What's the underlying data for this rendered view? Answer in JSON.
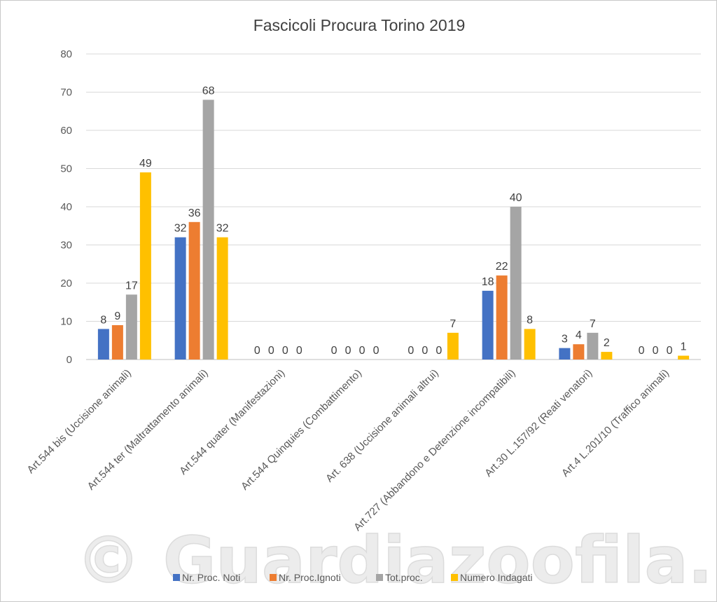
{
  "chart_data": {
    "type": "bar",
    "title": "Fascicoli Procura Torino 2019",
    "categories": [
      "Art.544 bis (Uccisione animali)",
      "Art.544 ter (Maltrattamento animali)",
      "Art.544 quater (Manifestazioni)",
      "Art.544 Quinquies (Combattimento)",
      "Art. 638 (Uccisione animali altrui)",
      "Art.727 (Abbandono e Detenzione incompatibili)",
      "Art.30 L.157/92 (Reati venatori)",
      "Art.4 L.201/10 (Traffico animali)"
    ],
    "series": [
      {
        "name": "Nr. Proc. Noti",
        "color": "#4472C4",
        "values": [
          8,
          32,
          0,
          0,
          0,
          18,
          3,
          0
        ]
      },
      {
        "name": "Nr. Proc.Ignoti",
        "color": "#ED7D31",
        "values": [
          9,
          36,
          0,
          0,
          0,
          22,
          4,
          0
        ]
      },
      {
        "name": "Tot.proc.",
        "color": "#A5A5A5",
        "values": [
          17,
          68,
          0,
          0,
          0,
          40,
          7,
          0
        ]
      },
      {
        "name": "Numero Indagati",
        "color": "#FFC000",
        "values": [
          49,
          32,
          0,
          0,
          7,
          8,
          2,
          1
        ]
      }
    ],
    "ylim": [
      0,
      80
    ],
    "yticks": [
      0,
      10,
      20,
      30,
      40,
      50,
      60,
      70,
      80
    ],
    "grid": true,
    "legend_position": "bottom",
    "data_labels": true
  },
  "watermark": "© Guardiazoofila.it"
}
